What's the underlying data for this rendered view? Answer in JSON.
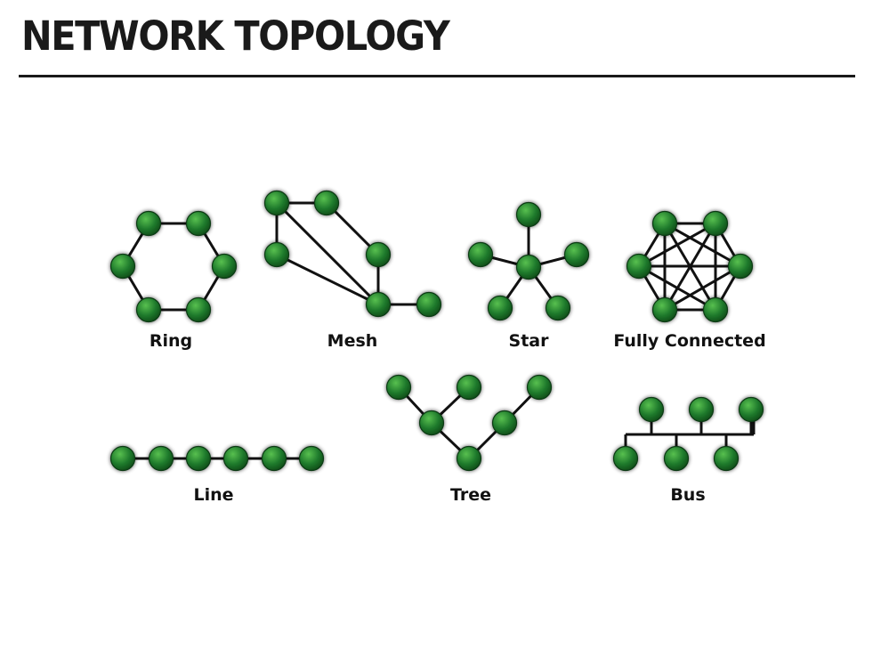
{
  "header": {
    "title": "NETWORK TOPOLOGY"
  },
  "colors": {
    "node": "#1f7a2c",
    "node_highlight": "#58c04f",
    "edge": "#111111",
    "rule": "#1a1a1a"
  },
  "icons": {
    "node": "network-node-icon"
  },
  "topologies": [
    {
      "id": "ring",
      "label": "Ring"
    },
    {
      "id": "mesh",
      "label": "Mesh"
    },
    {
      "id": "star",
      "label": "Star"
    },
    {
      "id": "fully-connected",
      "label": "Fully Connected"
    },
    {
      "id": "line",
      "label": "Line"
    },
    {
      "id": "tree",
      "label": "Tree"
    },
    {
      "id": "bus",
      "label": "Bus"
    }
  ]
}
